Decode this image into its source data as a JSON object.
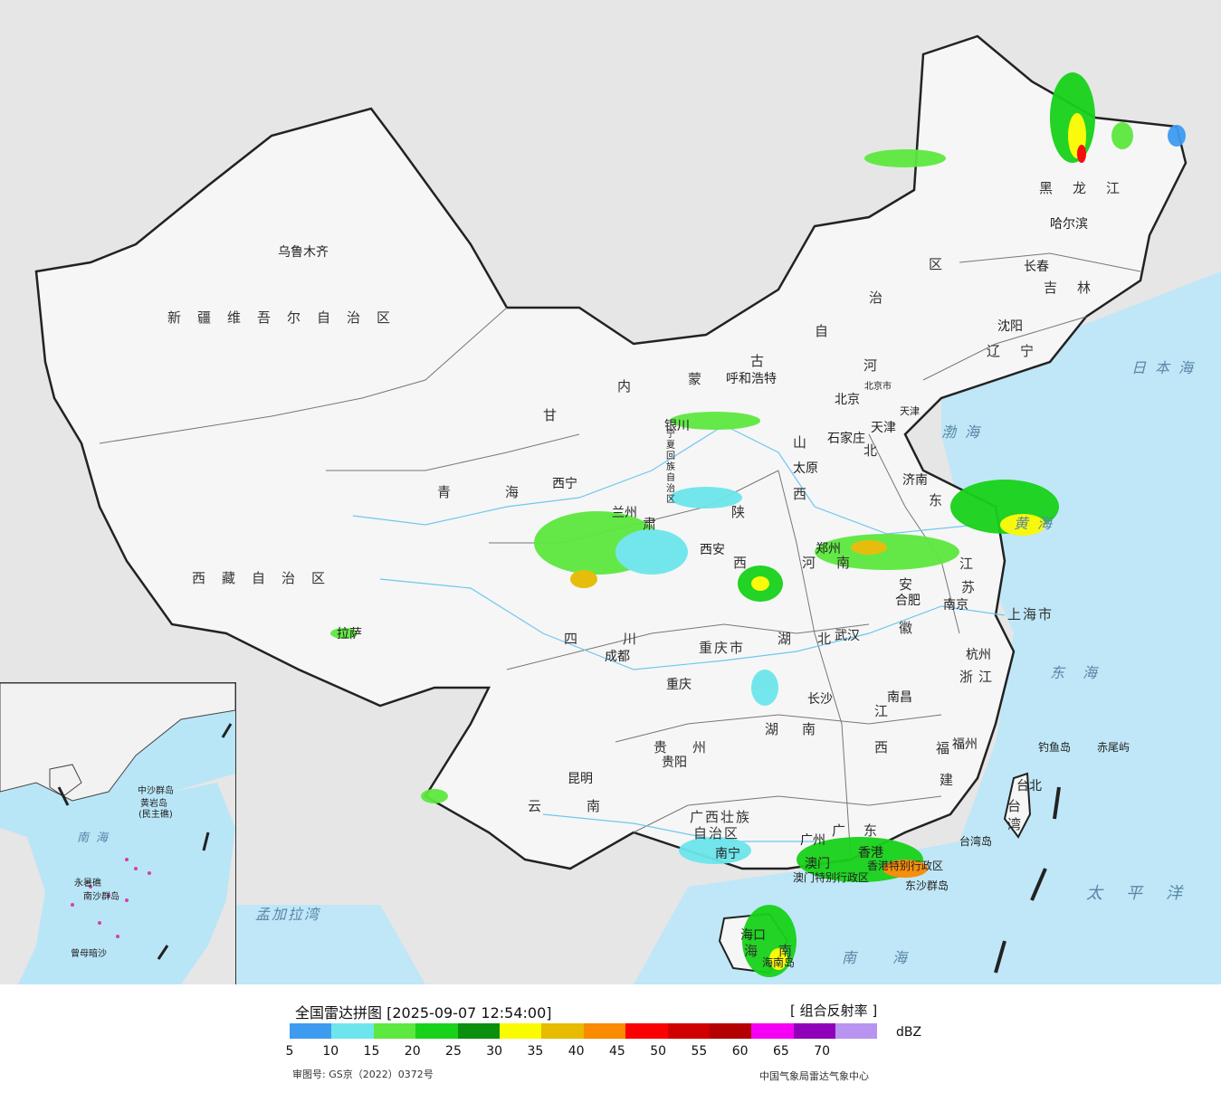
{
  "title_text": "全国雷达拼图 [2025-09-07 12:54:00]",
  "product_text": "[ 组合反射率 ]",
  "unit": "dBZ",
  "approval_no": "审图号: GS京（2022）0372号",
  "organization": "中国气象局雷达气象中心",
  "colorbar": {
    "colors": [
      "#3d9bf0",
      "#6ce6ec",
      "#5de83f",
      "#18d21a",
      "#0b8f0f",
      "#fbfb00",
      "#e6bb00",
      "#fa8a00",
      "#fa0000",
      "#d00000",
      "#b40000",
      "#f500f5",
      "#8f00b8",
      "#b893ef"
    ],
    "ticks": [
      "5",
      "10",
      "15",
      "20",
      "25",
      "30",
      "35",
      "40",
      "45",
      "50",
      "55",
      "60",
      "65",
      "70"
    ]
  },
  "map_labels": {
    "provinces": [
      "新疆维吾尔自治区",
      "西藏自治区",
      "青海",
      "甘",
      "肃",
      "四川",
      "云南",
      "贵州",
      "广西壮族",
      "自治区",
      "内",
      "蒙",
      "古",
      "自",
      "治",
      "区",
      "黑龙江",
      "吉林",
      "辽宁",
      "河",
      "北",
      "山",
      "西",
      "东",
      "陕",
      "西",
      "河",
      "南",
      "湖",
      "北",
      "湖",
      "南",
      "江",
      "西",
      "安",
      "徽",
      "江",
      "苏",
      "浙江",
      "福",
      "建",
      "广",
      "东",
      "海",
      "南",
      "台",
      "湾",
      "重庆市",
      "上海市",
      "北京市",
      "天津",
      "宁夏回族自治区"
    ],
    "cities": [
      "乌鲁木齐",
      "拉萨",
      "西宁",
      "兰州",
      "银川",
      "呼和浩特",
      "北京",
      "天津",
      "石家庄",
      "太原",
      "济南",
      "郑州",
      "西安",
      "成都",
      "重庆",
      "贵阳",
      "昆明",
      "南宁",
      "长沙",
      "武汉",
      "合肥",
      "南京",
      "杭州",
      "南昌",
      "福州",
      "台北",
      "广州",
      "香港",
      "澳门",
      "海口",
      "沈阳",
      "长春",
      "哈尔滨"
    ],
    "seas": [
      "日本海",
      "渤海",
      "黄海",
      "东海",
      "太平洋",
      "南海",
      "孟加拉湾"
    ],
    "islands": [
      "钓鱼岛",
      "赤尾屿",
      "台湾岛",
      "东沙群岛",
      "海南岛",
      "香港特别行政区",
      "澳门特别行政区"
    ],
    "inset": [
      "南海",
      "中沙群岛",
      "黄岩岛",
      "(民主礁)",
      "永暑礁",
      "南沙群岛",
      "曾母暗沙"
    ]
  }
}
